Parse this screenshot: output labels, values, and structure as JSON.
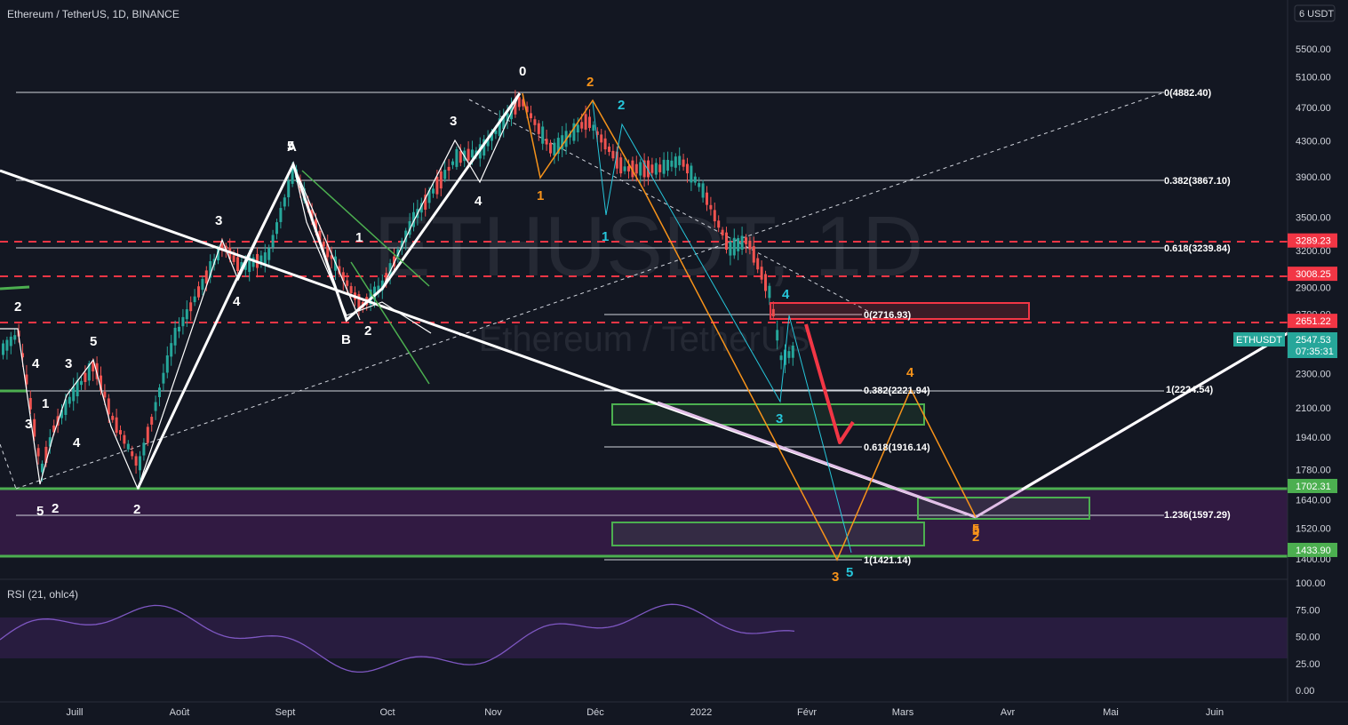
{
  "header": {
    "title": "Ethereum / TetherUS, 1D, BINANCE",
    "unit_label": "6 USDT"
  },
  "watermark": {
    "main": "ETHUSDT, 1D",
    "sub": "Ethereum / TetherUS"
  },
  "rsi": {
    "title": "RSI (21, ohlc4)",
    "ticks": [
      "100.00",
      "75.00",
      "50.00",
      "25.00",
      "0.00"
    ]
  },
  "colors": {
    "background": "#131722",
    "up": "#26a69a",
    "down": "#ef5350",
    "white": "#ffffff",
    "orange": "#f7931a",
    "cyan": "#26c6da",
    "green": "#4caf50",
    "red": "#f23645",
    "pink": "#e1bee7",
    "purple": "#7b3fa0",
    "rsi": "#7e57c2"
  },
  "chart_data": {
    "type": "candlestick",
    "symbol": "ETHUSDT",
    "y_scale": "log",
    "ylim": [
      1380,
      5800
    ],
    "price_ticks": [
      "5500.00",
      "5100.00",
      "4700.00",
      "4300.00",
      "3900.00",
      "3500.00",
      "3200.00",
      "2900.00",
      "2700.00",
      "2300.00",
      "2100.00",
      "1940.00",
      "1780.00",
      "1640.00",
      "1520.00",
      "1400.00"
    ],
    "x_ticks": [
      "Juill",
      "Août",
      "Sept",
      "Oct",
      "Nov",
      "Déc",
      "2022",
      "Févr",
      "Mars",
      "Avr",
      "Mai",
      "Juin"
    ],
    "price_badges": [
      {
        "value": "3289.23",
        "color": "#f23645"
      },
      {
        "value": "3008.25",
        "color": "#f23645"
      },
      {
        "value": "2651.22",
        "color": "#f23645"
      },
      {
        "value": "1702.31",
        "color": "#4caf50"
      },
      {
        "value": "1433.90",
        "color": "#4caf50"
      }
    ],
    "last_price": {
      "symbol": "ETHUSDT",
      "value": "2547.53",
      "countdown": "07:35:31"
    },
    "fib_labels": [
      "0(4882.40)",
      "0.382(3867.10)",
      "0.618(3239.84)",
      "0(2716.93)",
      "0.382(2221.94)",
      "1(2224.54)",
      "0.618(1916.14)",
      "1.236(1597.29)",
      "1(1421.14)"
    ],
    "wave_labels": [
      "0",
      "2",
      "2",
      "1",
      "1",
      "3",
      "4",
      "4",
      "2",
      "5",
      "3",
      "5",
      "2",
      "2",
      "3",
      "1",
      "1",
      "5",
      "4",
      "3",
      "4",
      "2",
      "5",
      "5",
      "3",
      "3",
      "4",
      "5",
      "4",
      "2",
      "B",
      "A"
    ]
  }
}
